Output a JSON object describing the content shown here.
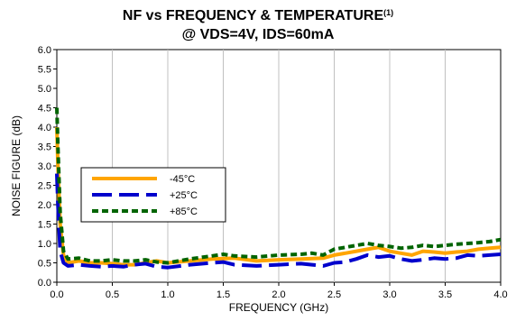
{
  "chart_data": {
    "type": "line",
    "title": "NF vs FREQUENCY & TEMPERATURE",
    "title_superscript": "(1)",
    "subtitle": "@ VDS=4V, IDS=60mA",
    "xlabel": "FREQUENCY  (GHz)",
    "ylabel": "NOISE FIGURE (dB)",
    "xlim": [
      0,
      4.0
    ],
    "ylim": [
      0,
      6.0
    ],
    "x_ticks": [
      "0.0",
      "0.5",
      "1.0",
      "1.5",
      "2.0",
      "2.5",
      "3.0",
      "3.5",
      "4.0"
    ],
    "y_ticks": [
      "0.0",
      "0.5",
      "1.0",
      "1.5",
      "2.0",
      "2.5",
      "3.0",
      "3.5",
      "4.0",
      "4.5",
      "5.0",
      "5.5",
      "6.0"
    ],
    "grid": "vertical",
    "legend_position": "left-middle",
    "series": [
      {
        "name": "-45°C",
        "color": "#FFA500",
        "style": "solid",
        "points": [
          [
            0.0,
            4.0
          ],
          [
            0.01,
            3.0
          ],
          [
            0.03,
            1.5
          ],
          [
            0.06,
            0.7
          ],
          [
            0.1,
            0.5
          ],
          [
            0.2,
            0.55
          ],
          [
            0.3,
            0.5
          ],
          [
            0.4,
            0.5
          ],
          [
            0.5,
            0.48
          ],
          [
            0.6,
            0.45
          ],
          [
            0.7,
            0.45
          ],
          [
            0.8,
            0.5
          ],
          [
            0.9,
            0.55
          ],
          [
            1.0,
            0.5
          ],
          [
            1.2,
            0.55
          ],
          [
            1.4,
            0.6
          ],
          [
            1.6,
            0.62
          ],
          [
            1.8,
            0.55
          ],
          [
            2.0,
            0.58
          ],
          [
            2.2,
            0.6
          ],
          [
            2.4,
            0.62
          ],
          [
            2.5,
            0.7
          ],
          [
            2.6,
            0.75
          ],
          [
            2.7,
            0.8
          ],
          [
            2.8,
            0.85
          ],
          [
            2.9,
            0.9
          ],
          [
            3.0,
            0.8
          ],
          [
            3.1,
            0.75
          ],
          [
            3.2,
            0.7
          ],
          [
            3.3,
            0.8
          ],
          [
            3.4,
            0.78
          ],
          [
            3.5,
            0.75
          ],
          [
            3.6,
            0.78
          ],
          [
            3.7,
            0.8
          ],
          [
            3.8,
            0.85
          ],
          [
            3.9,
            0.88
          ],
          [
            4.0,
            0.9
          ]
        ]
      },
      {
        "name": "+25°C",
        "color": "#0000CC",
        "style": "long-dash",
        "points": [
          [
            0.0,
            2.8
          ],
          [
            0.01,
            2.0
          ],
          [
            0.03,
            0.8
          ],
          [
            0.06,
            0.5
          ],
          [
            0.1,
            0.42
          ],
          [
            0.2,
            0.45
          ],
          [
            0.3,
            0.42
          ],
          [
            0.4,
            0.4
          ],
          [
            0.5,
            0.42
          ],
          [
            0.6,
            0.4
          ],
          [
            0.7,
            0.45
          ],
          [
            0.8,
            0.48
          ],
          [
            0.9,
            0.4
          ],
          [
            1.0,
            0.38
          ],
          [
            1.2,
            0.45
          ],
          [
            1.4,
            0.5
          ],
          [
            1.5,
            0.52
          ],
          [
            1.6,
            0.45
          ],
          [
            1.8,
            0.42
          ],
          [
            2.0,
            0.45
          ],
          [
            2.2,
            0.48
          ],
          [
            2.3,
            0.45
          ],
          [
            2.4,
            0.42
          ],
          [
            2.5,
            0.5
          ],
          [
            2.6,
            0.52
          ],
          [
            2.7,
            0.6
          ],
          [
            2.8,
            0.7
          ],
          [
            2.9,
            0.65
          ],
          [
            3.0,
            0.68
          ],
          [
            3.1,
            0.6
          ],
          [
            3.2,
            0.55
          ],
          [
            3.3,
            0.58
          ],
          [
            3.4,
            0.62
          ],
          [
            3.5,
            0.6
          ],
          [
            3.6,
            0.62
          ],
          [
            3.7,
            0.7
          ],
          [
            3.8,
            0.68
          ],
          [
            3.9,
            0.7
          ],
          [
            4.0,
            0.72
          ]
        ]
      },
      {
        "name": "+85°C",
        "color": "#006400",
        "style": "dash",
        "points": [
          [
            0.0,
            4.5
          ],
          [
            0.01,
            3.5
          ],
          [
            0.03,
            1.8
          ],
          [
            0.06,
            0.8
          ],
          [
            0.1,
            0.6
          ],
          [
            0.2,
            0.62
          ],
          [
            0.3,
            0.55
          ],
          [
            0.4,
            0.55
          ],
          [
            0.5,
            0.58
          ],
          [
            0.6,
            0.55
          ],
          [
            0.7,
            0.55
          ],
          [
            0.8,
            0.58
          ],
          [
            0.9,
            0.52
          ],
          [
            1.0,
            0.5
          ],
          [
            1.2,
            0.6
          ],
          [
            1.4,
            0.68
          ],
          [
            1.5,
            0.72
          ],
          [
            1.6,
            0.68
          ],
          [
            1.8,
            0.65
          ],
          [
            2.0,
            0.7
          ],
          [
            2.2,
            0.72
          ],
          [
            2.3,
            0.75
          ],
          [
            2.4,
            0.7
          ],
          [
            2.5,
            0.85
          ],
          [
            2.6,
            0.9
          ],
          [
            2.7,
            0.95
          ],
          [
            2.8,
            1.0
          ],
          [
            2.9,
            0.95
          ],
          [
            3.0,
            0.92
          ],
          [
            3.1,
            0.88
          ],
          [
            3.2,
            0.9
          ],
          [
            3.3,
            0.95
          ],
          [
            3.4,
            0.92
          ],
          [
            3.5,
            0.95
          ],
          [
            3.6,
            0.98
          ],
          [
            3.7,
            1.0
          ],
          [
            3.8,
            1.02
          ],
          [
            3.9,
            1.05
          ],
          [
            4.0,
            1.1
          ]
        ]
      }
    ]
  }
}
